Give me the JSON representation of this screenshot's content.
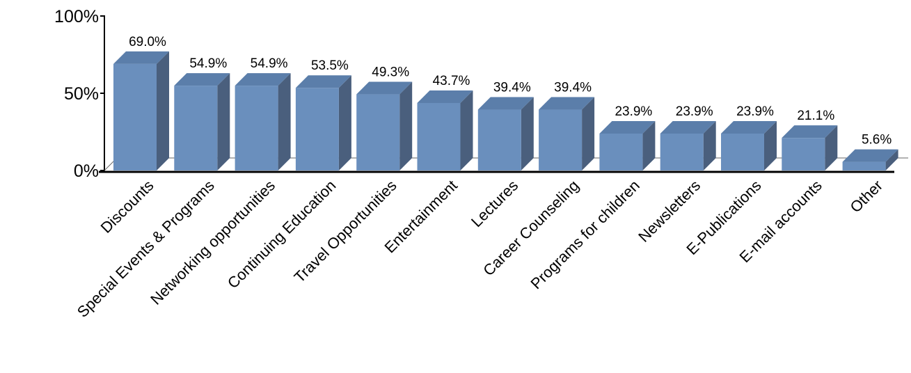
{
  "chart_data": {
    "type": "bar",
    "title": "",
    "xlabel": "",
    "ylabel": "",
    "categories": [
      "Discounts",
      "Special Events & Programs",
      "Networking opportunities",
      "Continuing Education",
      "Travel Opportunities",
      "Entertainment",
      "Lectures",
      "Career Counseling",
      "Programs for children",
      "Newsletters",
      "E-Publications",
      "E-mail accounts",
      "Other"
    ],
    "values": [
      69.0,
      54.9,
      54.9,
      53.5,
      49.3,
      43.7,
      39.4,
      39.4,
      23.9,
      23.9,
      23.9,
      21.1,
      5.6
    ],
    "data_labels": [
      "69.0%",
      "54.9%",
      "54.9%",
      "53.5%",
      "49.3%",
      "43.7%",
      "39.4%",
      "39.4%",
      "23.9%",
      "23.9%",
      "23.9%",
      "21.1%",
      "5.6%"
    ],
    "ylim": [
      0,
      100
    ],
    "yticks": [
      0,
      50,
      100
    ],
    "ytick_labels": [
      "0%",
      "50%",
      "100%"
    ],
    "grid": false,
    "legend": "none",
    "style": "3d-columns",
    "colors": {
      "front": "#6a8fbd",
      "top": "#5b7eaa",
      "side": "#4a5f7d",
      "axis": "#000000"
    }
  }
}
